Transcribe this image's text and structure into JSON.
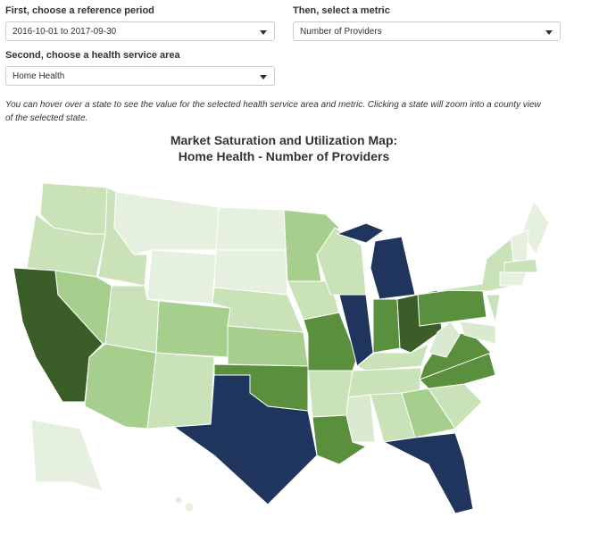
{
  "controls": {
    "period_label": "First, choose a reference period",
    "period_value": "2016-10-01 to 2017-09-30",
    "metric_label": "Then, select a metric",
    "metric_value": "Number of Providers",
    "area_label": "Second, choose a health service area",
    "area_value": "Home Health"
  },
  "description": "You can hover over a state to see the value for the selected health service area and metric. Clicking a state will zoom into a county view of the selected state.",
  "map": {
    "title_line1": "Market Saturation and Utilization Map:",
    "title_line2": "Home Health - Number of Providers"
  }
}
